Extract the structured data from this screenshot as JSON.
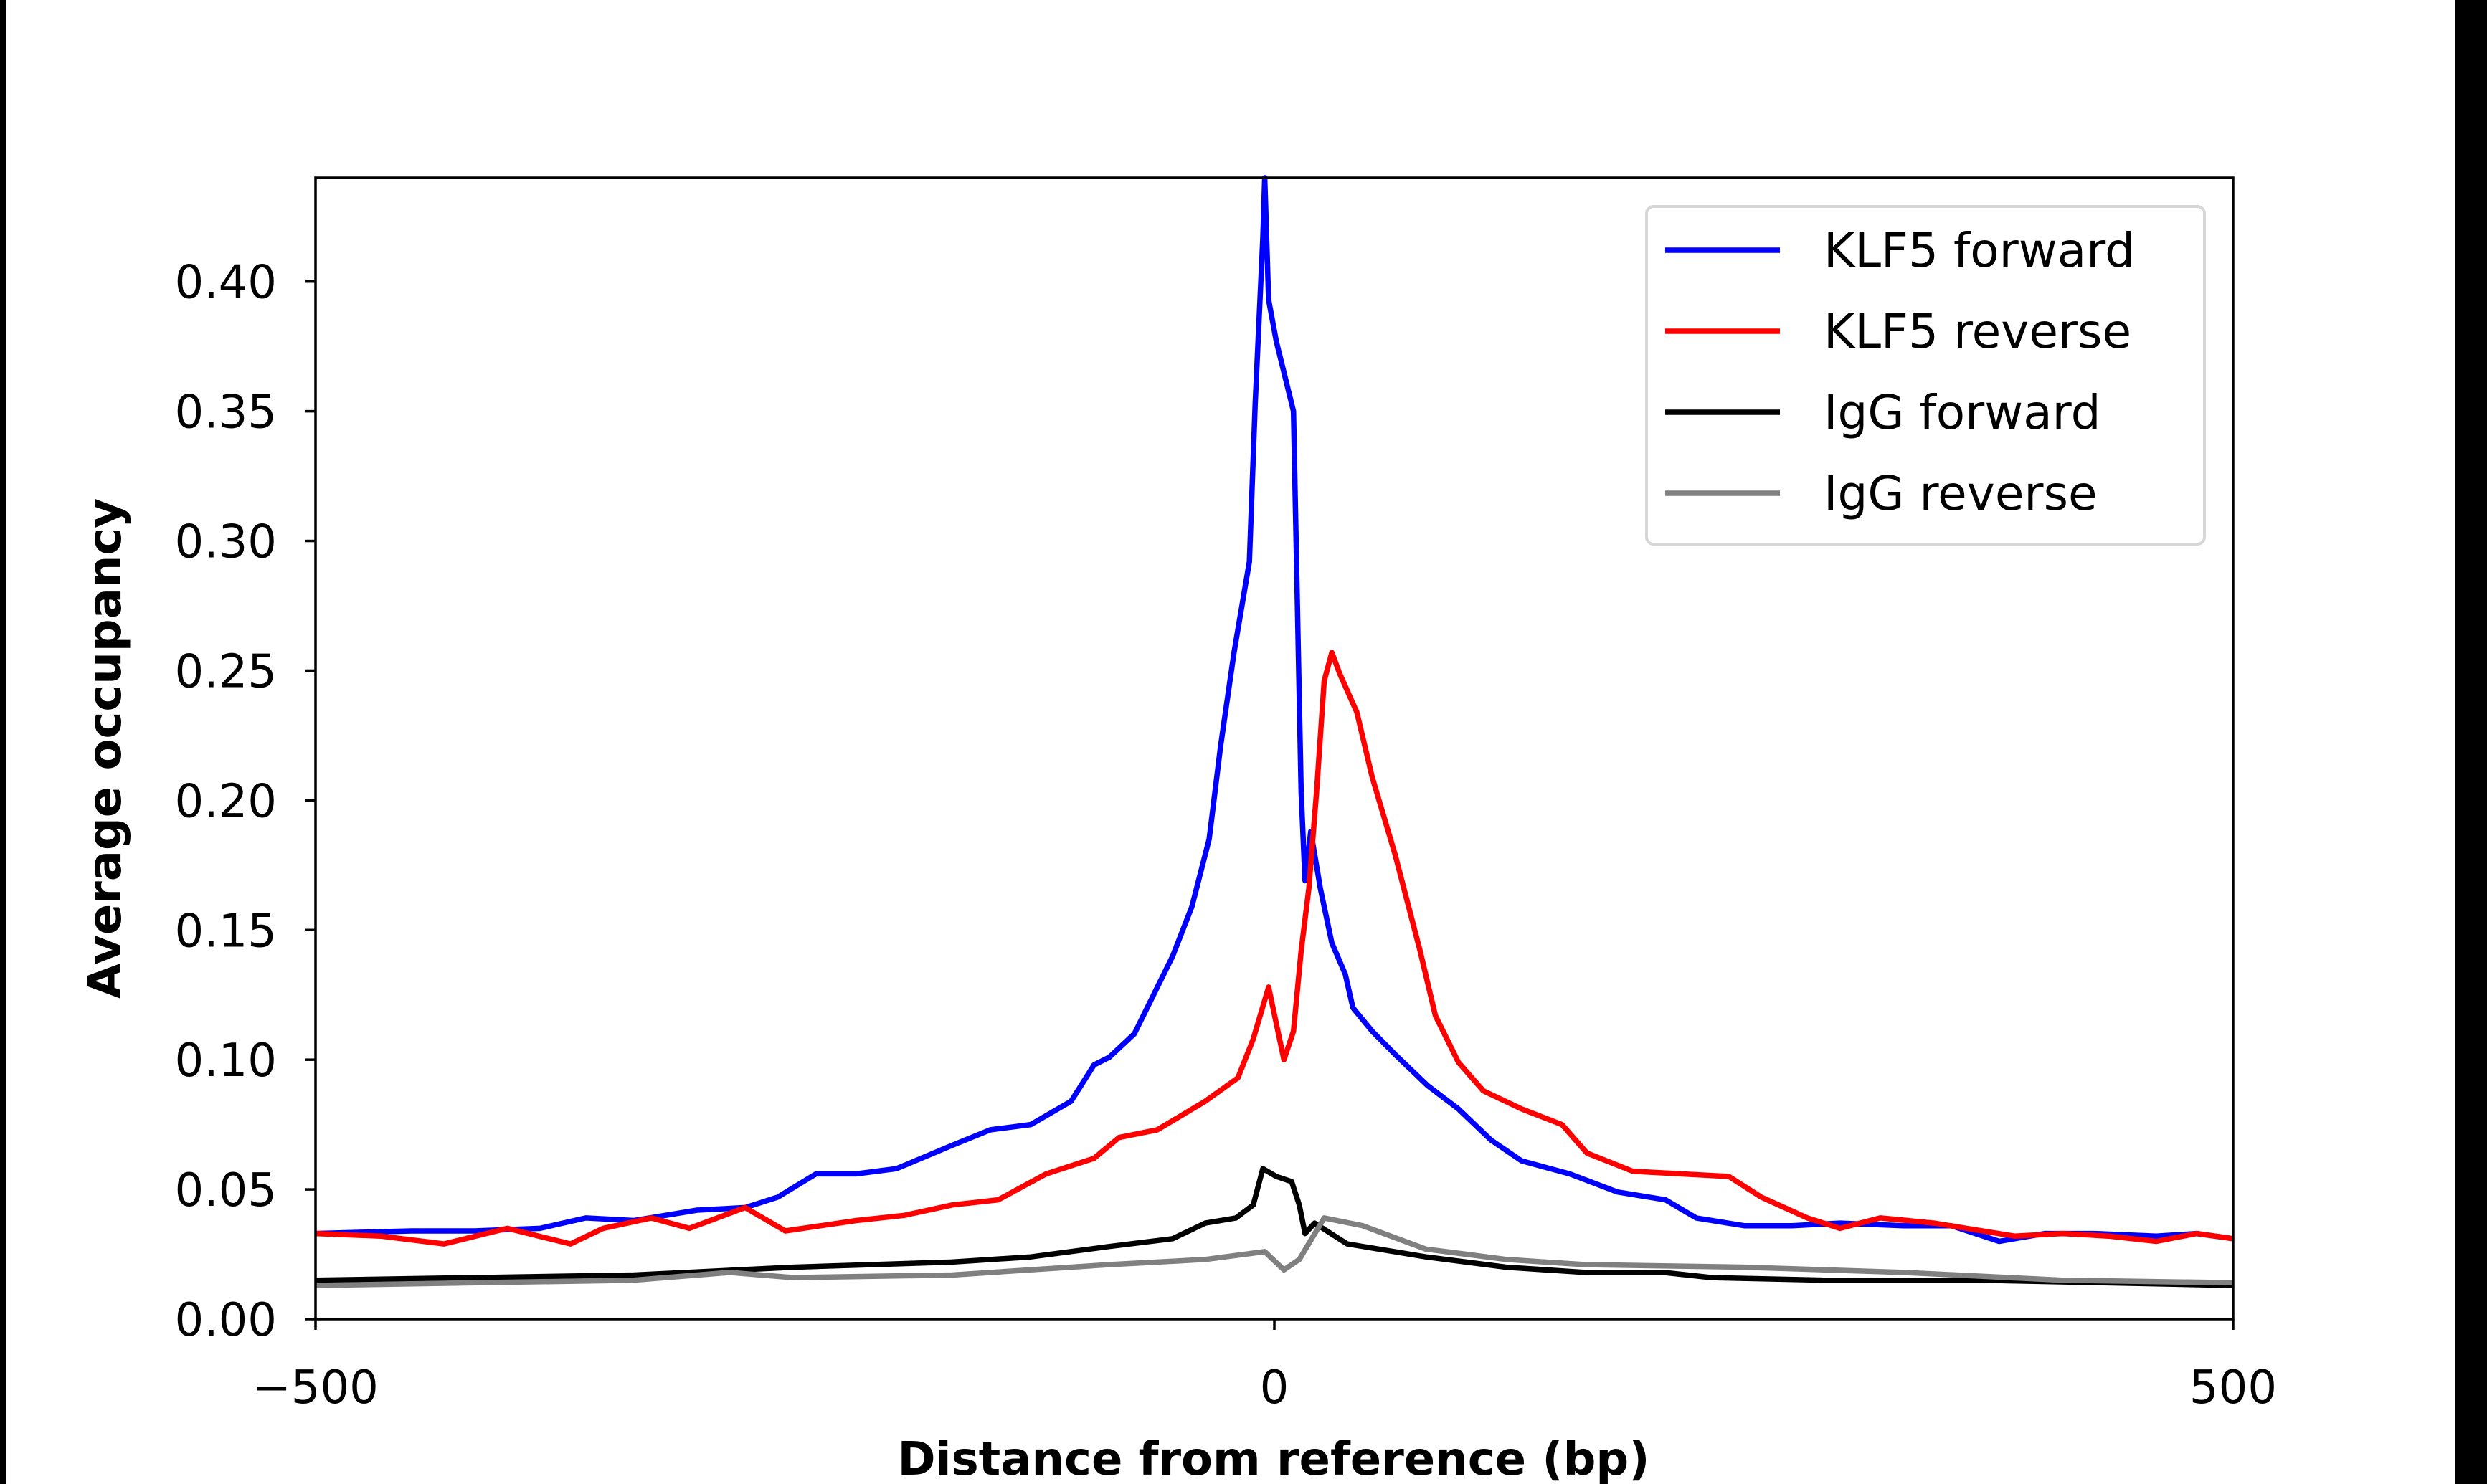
{
  "chart_data": {
    "type": "line",
    "xlabel": "Distance from reference (bp)",
    "ylabel": "Average occupancy",
    "xlim": [
      -500,
      500
    ],
    "ylim": [
      0,
      0.44
    ],
    "xticks": [
      -500,
      0,
      500
    ],
    "xtick_labels": [
      "−500",
      "0",
      "500"
    ],
    "yticks": [
      0,
      0.05,
      0.1,
      0.15,
      0.2,
      0.25,
      0.3,
      0.35,
      0.4
    ],
    "ytick_labels": [
      "0.00",
      "0.05",
      "0.10",
      "0.15",
      "0.20",
      "0.25",
      "0.30",
      "0.35",
      "0.40"
    ],
    "grid": false,
    "legend_position": "top-right",
    "series": [
      {
        "name": "KLF5 forward",
        "color": "#0000ff",
        "x": [
          -500,
          -450,
          -417,
          -383,
          -359,
          -334,
          -301,
          -276,
          -259,
          -239,
          -218,
          -197,
          -168,
          -148,
          -127,
          -106,
          -94,
          -86,
          -73,
          -65,
          -53,
          -43,
          -34,
          -28,
          -21,
          -13,
          -10,
          -6,
          -5,
          -3,
          1,
          5,
          10,
          12,
          14,
          16,
          19,
          24,
          30,
          37,
          41,
          51,
          63,
          80,
          96,
          113,
          129,
          154,
          179,
          204,
          220,
          245,
          270,
          295,
          328,
          353,
          378,
          402,
          427,
          460,
          481,
          500
        ],
        "y": [
          0.033,
          0.034,
          0.034,
          0.035,
          0.039,
          0.038,
          0.042,
          0.043,
          0.047,
          0.056,
          0.056,
          0.058,
          0.067,
          0.073,
          0.075,
          0.084,
          0.098,
          0.101,
          0.11,
          0.122,
          0.14,
          0.159,
          0.185,
          0.221,
          0.257,
          0.292,
          0.353,
          0.417,
          0.44,
          0.393,
          0.377,
          0.365,
          0.35,
          0.276,
          0.203,
          0.169,
          0.188,
          0.166,
          0.145,
          0.133,
          0.12,
          0.111,
          0.102,
          0.09,
          0.081,
          0.069,
          0.061,
          0.056,
          0.049,
          0.046,
          0.039,
          0.036,
          0.036,
          0.037,
          0.036,
          0.036,
          0.03,
          0.033,
          0.033,
          0.032,
          0.033,
          0.031
        ]
      },
      {
        "name": "KLF5 reverse",
        "color": "#ff0000",
        "x": [
          -500,
          -466,
          -433,
          -400,
          -367,
          -350,
          -325,
          -305,
          -276,
          -255,
          -218,
          -193,
          -168,
          -144,
          -119,
          -94,
          -81,
          -61,
          -36,
          -19,
          -11,
          -3,
          5,
          10,
          14,
          18,
          22,
          26,
          30,
          34,
          43,
          51,
          63,
          76,
          84,
          96,
          109,
          129,
          150,
          163,
          187,
          212,
          237,
          254,
          278,
          295,
          316,
          344,
          361,
          386,
          411,
          435,
          460,
          481,
          500
        ],
        "y": [
          0.033,
          0.032,
          0.029,
          0.035,
          0.029,
          0.035,
          0.039,
          0.035,
          0.043,
          0.034,
          0.038,
          0.04,
          0.044,
          0.046,
          0.056,
          0.062,
          0.07,
          0.073,
          0.084,
          0.093,
          0.108,
          0.128,
          0.1,
          0.111,
          0.142,
          0.166,
          0.203,
          0.246,
          0.257,
          0.249,
          0.234,
          0.209,
          0.179,
          0.142,
          0.117,
          0.099,
          0.088,
          0.081,
          0.075,
          0.064,
          0.057,
          0.056,
          0.055,
          0.047,
          0.039,
          0.035,
          0.039,
          0.037,
          0.035,
          0.032,
          0.033,
          0.032,
          0.03,
          0.033,
          0.031
        ]
      },
      {
        "name": "IgG forward",
        "color": "#000000",
        "x": [
          -500,
          -416,
          -334,
          -251,
          -168,
          -127,
          -86,
          -53,
          -36,
          -20,
          -11,
          -6,
          1,
          9,
          13,
          16,
          21,
          38,
          79,
          121,
          162,
          203,
          228,
          286,
          369,
          500
        ],
        "y": [
          0.015,
          0.016,
          0.017,
          0.02,
          0.022,
          0.024,
          0.028,
          0.031,
          0.037,
          0.039,
          0.044,
          0.058,
          0.055,
          0.053,
          0.044,
          0.033,
          0.037,
          0.029,
          0.024,
          0.02,
          0.018,
          0.018,
          0.016,
          0.015,
          0.015,
          0.013
        ]
      },
      {
        "name": "IgG reverse",
        "color": "#808080",
        "x": [
          -500,
          -416,
          -334,
          -284,
          -251,
          -168,
          -86,
          -36,
          -5,
          5,
          13,
          26,
          46,
          79,
          121,
          162,
          245,
          328,
          411,
          500
        ],
        "y": [
          0.013,
          0.014,
          0.015,
          0.018,
          0.016,
          0.017,
          0.021,
          0.023,
          0.026,
          0.019,
          0.023,
          0.039,
          0.036,
          0.027,
          0.023,
          0.021,
          0.02,
          0.018,
          0.015,
          0.014
        ]
      }
    ]
  }
}
